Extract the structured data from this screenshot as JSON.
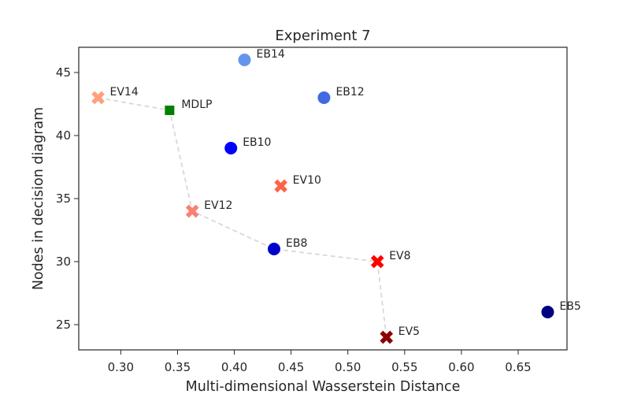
{
  "chart_data": {
    "type": "scatter",
    "title": "Experiment 7",
    "xlabel": "Multi-dimensional Wasserstein Distance",
    "ylabel": "Nodes in decision diagram",
    "xlim": [
      0.263,
      0.693
    ],
    "ylim": [
      23.0,
      47.0
    ],
    "xticks": [
      0.3,
      0.35,
      0.4,
      0.45,
      0.5,
      0.55,
      0.6,
      0.65
    ],
    "xtick_labels": [
      "0.30",
      "0.35",
      "0.40",
      "0.45",
      "0.50",
      "0.55",
      "0.60",
      "0.65"
    ],
    "yticks": [
      25,
      30,
      35,
      40,
      45
    ],
    "ytick_labels": [
      "25",
      "30",
      "35",
      "40",
      "45"
    ],
    "grid": false,
    "points": [
      {
        "label": "EB14",
        "x": 0.409,
        "y": 46,
        "marker": "circle",
        "color": "#6495ed"
      },
      {
        "label": "EV14",
        "x": 0.28,
        "y": 43,
        "marker": "x",
        "color": "#ffa07a"
      },
      {
        "label": "EB12",
        "x": 0.479,
        "y": 43,
        "marker": "circle",
        "color": "#4169e1"
      },
      {
        "label": "MDLP",
        "x": 0.343,
        "y": 42,
        "marker": "square",
        "color": "#008000"
      },
      {
        "label": "EB10",
        "x": 0.397,
        "y": 39,
        "marker": "circle",
        "color": "#0000ff"
      },
      {
        "label": "EV10",
        "x": 0.441,
        "y": 36,
        "marker": "x",
        "color": "#ff6347"
      },
      {
        "label": "EV12",
        "x": 0.363,
        "y": 34,
        "marker": "x",
        "color": "#fa8072"
      },
      {
        "label": "EB8",
        "x": 0.435,
        "y": 31,
        "marker": "circle",
        "color": "#0000cd"
      },
      {
        "label": "EV8",
        "x": 0.526,
        "y": 30,
        "marker": "x",
        "color": "#ff0000"
      },
      {
        "label": "EB5",
        "x": 0.676,
        "y": 26,
        "marker": "circle",
        "color": "#000080"
      },
      {
        "label": "EV5",
        "x": 0.534,
        "y": 24,
        "marker": "x",
        "color": "#8b0000"
      }
    ],
    "frontier": {
      "x": [
        0.28,
        0.343,
        0.363,
        0.435,
        0.526,
        0.534
      ],
      "y": [
        43,
        42,
        34,
        31,
        30,
        24
      ],
      "color": "#d9d9d9",
      "style": "dashed"
    }
  }
}
